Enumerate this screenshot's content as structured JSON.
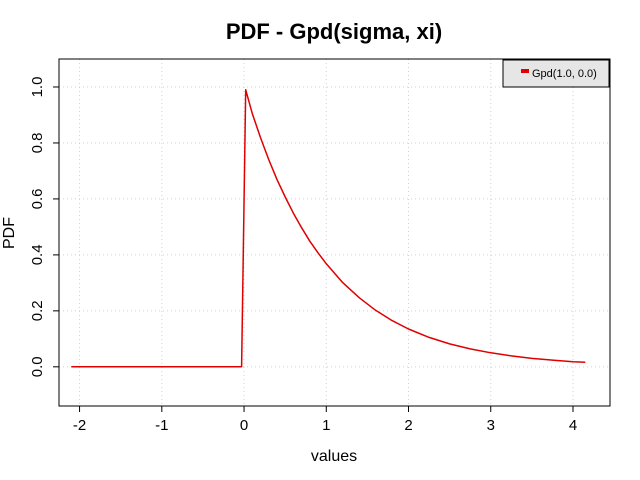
{
  "chart_data": {
    "type": "line",
    "title": "PDF - Gpd(sigma, xi)",
    "xlabel": "values",
    "ylabel": "PDF",
    "xlim": [
      -2.25,
      4.45
    ],
    "ylim": [
      -0.14,
      1.1
    ],
    "xticks": [
      -2,
      -1,
      0,
      1,
      2,
      3,
      4
    ],
    "xtick_labels": [
      "-2",
      "-1",
      "0",
      "1",
      "2",
      "3",
      "4"
    ],
    "yticks": [
      0.0,
      0.2,
      0.4,
      0.6,
      0.8,
      1.0
    ],
    "ytick_labels": [
      "0.0",
      "0.2",
      "0.4",
      "0.6",
      "0.8",
      "1.0"
    ],
    "grid": true,
    "legend_position": "top-right",
    "series": [
      {
        "name": "Gpd(1.0, 0.0)",
        "color": "#e00000",
        "x": [
          -2.1,
          -1.5,
          -1.0,
          -0.5,
          -0.03,
          0.02,
          0.1,
          0.2,
          0.3,
          0.4,
          0.5,
          0.6,
          0.7,
          0.8,
          0.9,
          1.0,
          1.2,
          1.4,
          1.6,
          1.8,
          2.0,
          2.25,
          2.5,
          2.75,
          3.0,
          3.25,
          3.5,
          3.75,
          4.0,
          4.15
        ],
        "y": [
          0.0,
          0.0,
          0.0,
          0.0,
          0.0,
          0.99,
          0.905,
          0.819,
          0.741,
          0.67,
          0.607,
          0.549,
          0.497,
          0.449,
          0.407,
          0.368,
          0.301,
          0.247,
          0.202,
          0.165,
          0.135,
          0.105,
          0.082,
          0.064,
          0.05,
          0.039,
          0.03,
          0.024,
          0.018,
          0.016
        ]
      }
    ]
  }
}
